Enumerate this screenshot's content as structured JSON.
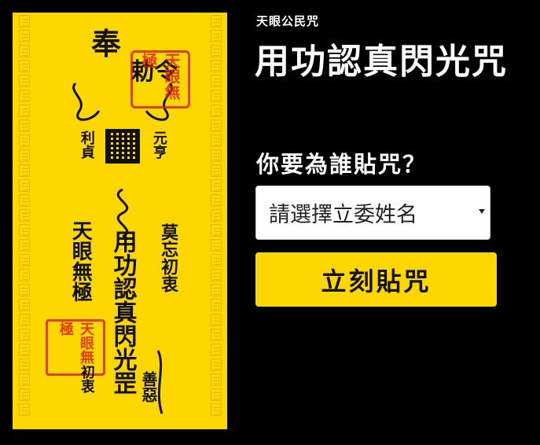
{
  "colors": {
    "background": "#000000",
    "talisman_yellow": "#FFD700",
    "ink": "#111111",
    "seal_red": "#D9261C",
    "title_text": "#FFFFFF",
    "button_bg": "#FFD700"
  },
  "talisman": {
    "edict_line1": "奉",
    "edict_line2": "勅令",
    "left_small": "利貞",
    "right_small": "元亨",
    "heaven_eye": "天眼無極",
    "main_spell": "用功認真閃光罡",
    "right_spell": "莫忘初衷",
    "bottom_small": "初衷",
    "good_evil": "善惡",
    "seal_top_text": "天眼無極",
    "seal_bottom_text": "天眼無極"
  },
  "header": {
    "eyebrow": "天眼公民咒",
    "title": "用功認真閃光咒"
  },
  "form": {
    "question": "你要為誰貼咒？",
    "select_value": "請選擇立委姓名",
    "submit_label": "立刻貼咒"
  }
}
